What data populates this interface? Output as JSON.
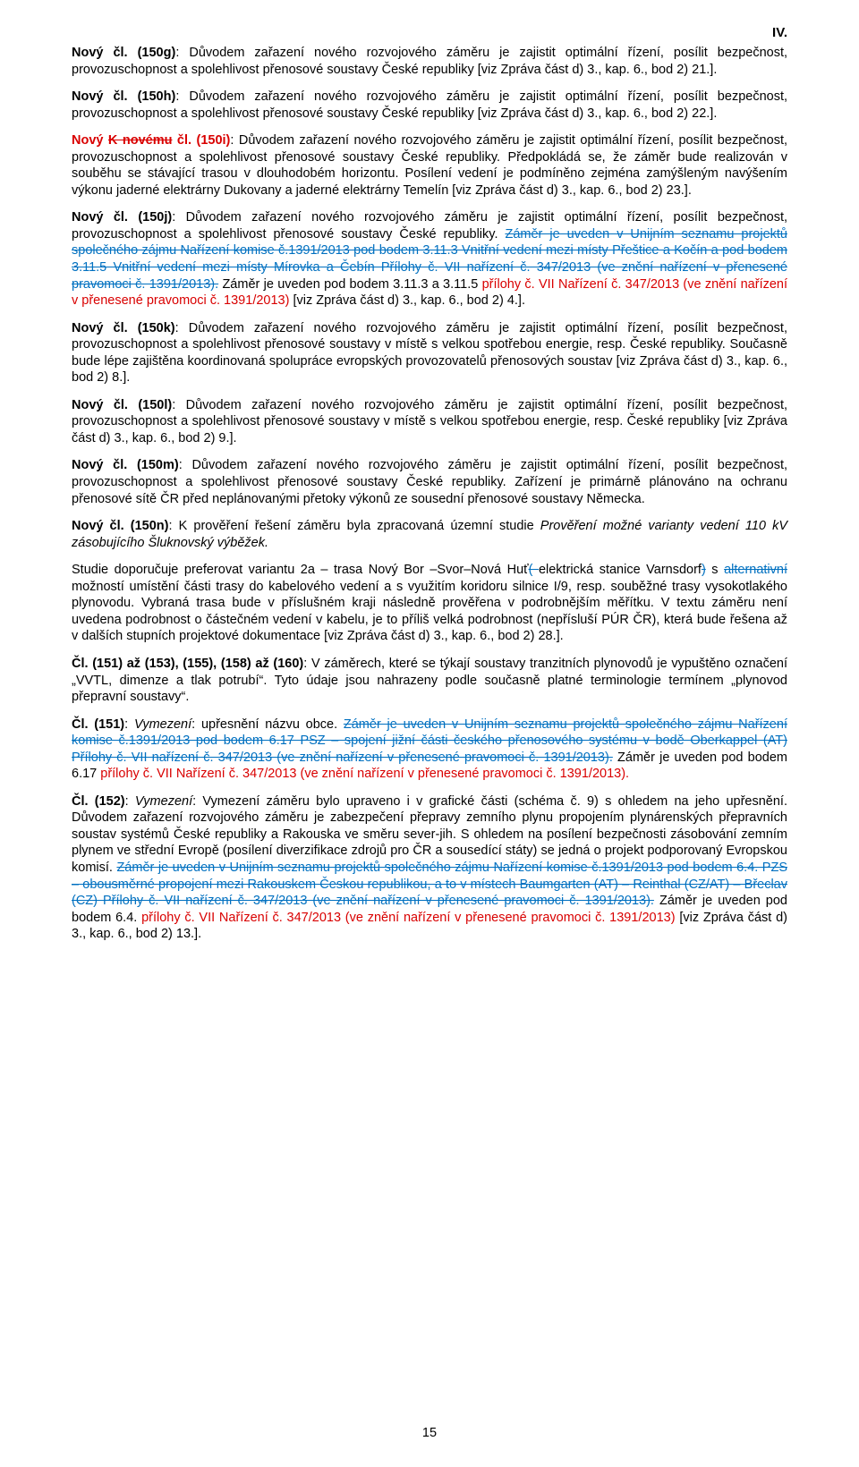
{
  "corner_mark": "IV.",
  "page_number": "15",
  "paragraphs": [
    {
      "runs": [
        {
          "bold": true,
          "text": "Nový čl. (150g)"
        },
        {
          "text": ": Důvodem zařazení nového rozvojového záměru je zajistit optimální řízení, posílit bezpečnost, provozuschopnost a spolehlivost přenosové soustavy České republiky [viz Zpráva část d) 3., kap. 6., bod 2) 21.]."
        }
      ]
    },
    {
      "runs": [
        {
          "bold": true,
          "text": "Nový čl. (150h)"
        },
        {
          "text": ": Důvodem zařazení nového rozvojového záměru je zajistit optimální řízení, posílit bezpečnost, provozuschopnost a spolehlivost přenosové soustavy České republiky [viz Zpráva část d) 3., kap. 6., bod 2) 22.]."
        }
      ]
    },
    {
      "runs": [
        {
          "bold": true,
          "red": true,
          "text": "Nový "
        },
        {
          "bold": true,
          "red": true,
          "strike": true,
          "text": "K novému"
        },
        {
          "bold": true,
          "red": true,
          "text": " čl. (150i)"
        },
        {
          "text": ": Důvodem zařazení nového rozvojového záměru je zajistit optimální řízení, posílit bezpečnost, provozuschopnost a spolehlivost přenosové soustavy České republiky. Předpokládá se, že záměr bude realizován v souběhu se stávající trasou v dlouhodobém horizontu. Posílení vedení je podmíněno zejména zamýšleným navýšením výkonu jaderné elektrárny Dukovany a jaderné elektrárny Temelín [viz Zpráva část d) 3., kap. 6., bod 2) 23.]."
        }
      ]
    },
    {
      "runs": [
        {
          "bold": true,
          "text": "Nový čl. (150j)"
        },
        {
          "text": ": Důvodem zařazení nového rozvojového záměru je zajistit optimální řízení, posílit bezpečnost, provozuschopnost a spolehlivost přenosové soustavy České republiky. "
        },
        {
          "blue": true,
          "strike": true,
          "text": "Záměr je uveden v Unijním seznamu projektů společného zájmu Nařízení komise č.1391/2013 pod bodem 3.11.3 Vnitřní vedení mezi místy Přeštice a Kočín a pod bodem 3.11.5 Vnitřní vedení mezi místy Mírovka a Čebín Přílohy č. VII nařízení č. 347/2013 (ve znění nařízení v přenesené pravomoci č. 1391/2013)."
        },
        {
          "text": " Záměr je uveden pod bodem 3.11.3 a 3.11.5 "
        },
        {
          "red": true,
          "text": "přílohy č. VII Nařízení č. 347/2013 (ve znění nařízení v přenesené pravomoci č. 1391/2013)"
        },
        {
          "text": " [viz Zpráva část d) 3., kap. 6., bod 2) 4.]."
        }
      ]
    },
    {
      "runs": [
        {
          "bold": true,
          "text": "Nový čl. (150k)"
        },
        {
          "text": ": Důvodem zařazení nového rozvojového záměru je zajistit optimální řízení, posílit bezpečnost, provozuschopnost a spolehlivost přenosové soustavy v místě s velkou spotřebou energie, resp. České republiky. Současně bude lépe zajištěna koordinovaná spolupráce evropských provozovatelů přenosových soustav [viz Zpráva část d) 3., kap. 6., bod 2) 8.]."
        }
      ]
    },
    {
      "runs": [
        {
          "bold": true,
          "text": "Nový čl. (150l)"
        },
        {
          "text": ": Důvodem zařazení nového rozvojového záměru je zajistit optimální řízení, posílit bezpečnost, provozuschopnost a spolehlivost přenosové soustavy v místě s velkou spotřebou energie, resp. České republiky [viz Zpráva část d) 3., kap. 6., bod 2) 9.]."
        }
      ]
    },
    {
      "runs": [
        {
          "bold": true,
          "text": "Nový čl. (150m)"
        },
        {
          "text": ": Důvodem zařazení nového rozvojového záměru je zajistit optimální řízení, posílit bezpečnost, provozuschopnost a spolehlivost přenosové soustavy České republiky. Zařízení je primárně plánováno na ochranu přenosové sítě ČR před neplánovanými přetoky výkonů ze sousední přenosové soustavy Německa."
        }
      ]
    },
    {
      "runs": [
        {
          "bold": true,
          "text": "Nový čl. (150n)"
        },
        {
          "text": ": K prověření řešení záměru byla zpracovaná územní studie "
        },
        {
          "italic": true,
          "text": "Prověření možné varianty vedení 110 kV zásobujícího Šluknovský výběžek."
        }
      ]
    },
    {
      "runs": [
        {
          "text": "Studie doporučuje preferovat variantu 2a – trasa Nový Bor –Svor–Nová Huť"
        },
        {
          "blue": true,
          "strike": true,
          "text": "( "
        },
        {
          "text": "elektrická stanice Varnsdorf"
        },
        {
          "blue": true,
          "strike": true,
          "text": ")"
        },
        {
          "text": " s "
        },
        {
          "blue": true,
          "strike": true,
          "text": "alternativní"
        },
        {
          "text": " možností umístění části trasy do kabelového vedení a s využitím koridoru silnice I/9, resp. souběžné trasy vysokotlakého plynovodu. Vybraná trasa bude v příslušném kraji následně prověřena v podrobnějším měřítku. V textu záměru není uvedena podrobnost o částečném vedení v kabelu, je to příliš velká podrobnost (nepřísluší PÚR ČR), která bude řešena až v dalších stupních projektové dokumentace [viz Zpráva část d) 3., kap. 6., bod 2) 28.]."
        }
      ]
    },
    {
      "runs": [
        {
          "bold": true,
          "text": "Čl. (151) až (153), (155), (158) až (160)"
        },
        {
          "text": ": V záměrech, které se týkají soustavy tranzitních plynovodů je vypuštěno označení „VVTL, dimenze a tlak potrubí“. Tyto údaje jsou nahrazeny podle současně platné terminologie termínem „plynovod přepravní soustavy“."
        }
      ]
    },
    {
      "runs": [
        {
          "bold": true,
          "text": "Čl. (151)"
        },
        {
          "text": ": "
        },
        {
          "italic": true,
          "text": "Vymezení"
        },
        {
          "text": ": upřesnění názvu obce. "
        },
        {
          "blue": true,
          "strike": true,
          "text": "Záměr je uveden v Unijním seznamu projektů společného zájmu Nařízení komise č.1391/2013 pod bodem 6.17 PSZ – spojení jižní části českého přenosového systému v bodě Oberkappel (AT) Přílohy č. VII nařízení č. 347/2013 (ve znění nařízení v přenesené pravomoci č. 1391/2013)."
        },
        {
          "text": " Záměr je uveden pod bodem 6.17 "
        },
        {
          "red": true,
          "text": "přílohy č. VII Nařízení č. 347/2013 (ve znění nařízení v přenesené pravomoci č. 1391/2013)."
        }
      ]
    },
    {
      "runs": [
        {
          "bold": true,
          "text": "Čl. (152)"
        },
        {
          "text": ": "
        },
        {
          "italic": true,
          "text": "Vymezení"
        },
        {
          "text": ": Vymezení záměru bylo upraveno i v grafické části (schéma č. 9) s ohledem na jeho upřesnění. Důvodem zařazení rozvojového záměru je zabezpečení přepravy zemního plynu propojením plynárenských přepravních soustav systémů České republiky a Rakouska ve směru sever-jih. S ohledem na posílení bezpečnosti zásobování zemním plynem ve střední Evropě (posílení diverzifikace zdrojů pro ČR a sousedící státy) se jedná o projekt podporovaný Evropskou komisí. "
        },
        {
          "blue": true,
          "strike": true,
          "text": "Záměr je uveden v Unijním seznamu projektů společného zájmu Nařízení komise č.1391/2013 pod bodem 6.4. PZS – obousměrné propojení mezi Rakouskem Českou republikou, a to v místech Baumgarten (AT) – Reinthal (CZ/AT) – Břeclav (CZ) Přílohy č. VII nařízení č. 347/2013 (ve znění nařízení v přenesené pravomoci č. 1391/2013)."
        },
        {
          "text": " Záměr je uveden pod bodem 6.4. "
        },
        {
          "red": true,
          "text": "přílohy č. VII Nařízení č. 347/2013 (ve znění nařízení v přenesené pravomoci č. 1391/2013)"
        },
        {
          "text": " [viz Zpráva část d) 3., kap. 6., bod 2) 13.]."
        }
      ]
    }
  ]
}
